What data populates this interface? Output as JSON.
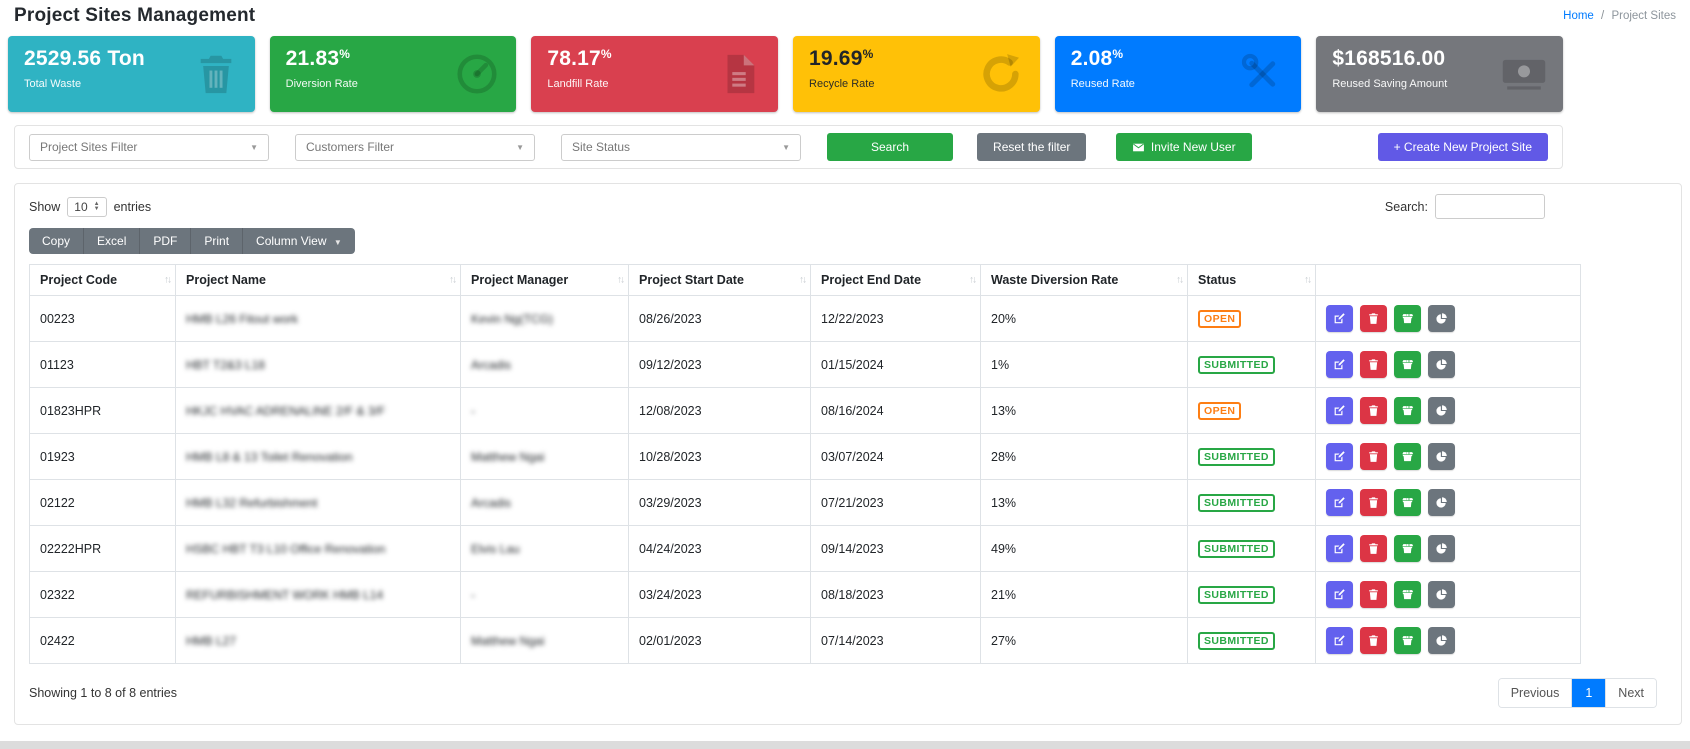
{
  "header": {
    "title": "Project Sites Management",
    "breadcrumb": {
      "home": "Home",
      "separator": "/",
      "current": "Project Sites"
    }
  },
  "stats": [
    {
      "value": "2529.56 Ton",
      "label": "Total Waste",
      "color": "#2fb3c3",
      "icon": "trash-icon"
    },
    {
      "value": "21.83",
      "unit": "%",
      "label": "Diversion Rate",
      "color": "#28a745",
      "icon": "gauge-icon"
    },
    {
      "value": "78.17",
      "unit": "%",
      "label": "Landfill Rate",
      "color": "#d9404f",
      "icon": "file-icon"
    },
    {
      "value": "19.69",
      "unit": "%",
      "label": "Recycle Rate",
      "color": "#ffc107",
      "icon": "sync-icon"
    },
    {
      "value": "2.08",
      "unit": "%",
      "label": "Reused Rate",
      "color": "#007bff",
      "icon": "tools-icon"
    },
    {
      "value": "$168516.00",
      "label": "Reused Saving Amount",
      "color": "#75777c",
      "icon": "money-icon"
    }
  ],
  "filters": {
    "project_sites_placeholder": "Project Sites Filter",
    "customers_placeholder": "Customers Filter",
    "site_status_placeholder": "Site Status",
    "search_button": "Search",
    "reset_button": "Reset the filter",
    "invite_button": "Invite New User",
    "create_button": "+ Create New Project Site"
  },
  "table_controls": {
    "show_label": "Show",
    "page_length": "10",
    "entries_label": "entries",
    "export_buttons": [
      "Copy",
      "Excel",
      "PDF",
      "Print"
    ],
    "column_view": "Column View",
    "search_label": "Search:",
    "search_value": ""
  },
  "table": {
    "columns": [
      "Project Code",
      "Project Name",
      "Project Manager",
      "Project Start Date",
      "Project End Date",
      "Waste Diversion Rate",
      "Status",
      ""
    ],
    "rows": [
      {
        "code": "00223",
        "name": "HMB L26 Fitout work",
        "manager": "Kevin Ng(TCG)",
        "start": "08/26/2023",
        "end": "12/22/2023",
        "rate": "20%",
        "status": "OPEN"
      },
      {
        "code": "01123",
        "name": "HBT T2&3 L18",
        "manager": "Arcadis",
        "start": "09/12/2023",
        "end": "01/15/2024",
        "rate": "1%",
        "status": "SUBMITTED"
      },
      {
        "code": "01823HPR",
        "name": "HKJC HVAC ADRENALINE 2/F & 3/F",
        "manager": "-",
        "start": "12/08/2023",
        "end": "08/16/2024",
        "rate": "13%",
        "status": "OPEN"
      },
      {
        "code": "01923",
        "name": "HMB L8 & 13 Toilet Renovation",
        "manager": "Matthew Ngai",
        "start": "10/28/2023",
        "end": "03/07/2024",
        "rate": "28%",
        "status": "SUBMITTED"
      },
      {
        "code": "02122",
        "name": "HMB L32 Refurbishment",
        "manager": "Arcadis",
        "start": "03/29/2023",
        "end": "07/21/2023",
        "rate": "13%",
        "status": "SUBMITTED"
      },
      {
        "code": "02222HPR",
        "name": "HSBC HBT T3 L10 Office Renovation",
        "manager": "Elvis Lau",
        "start": "04/24/2023",
        "end": "09/14/2023",
        "rate": "49%",
        "status": "SUBMITTED"
      },
      {
        "code": "02322",
        "name": "REFURBISHMENT WORK HMB L14",
        "manager": "-",
        "start": "03/24/2023",
        "end": "08/18/2023",
        "rate": "21%",
        "status": "SUBMITTED"
      },
      {
        "code": "02422",
        "name": "HMB L27",
        "manager": "Matthew Ngai",
        "start": "02/01/2023",
        "end": "07/14/2023",
        "rate": "27%",
        "status": "SUBMITTED"
      }
    ],
    "status_colors": {
      "OPEN": "#fd7e14",
      "SUBMITTED": "#28a745"
    },
    "action_buttons": [
      {
        "name": "edit",
        "icon": "edit-icon",
        "color": "#6361ee"
      },
      {
        "name": "delete",
        "icon": "trash-icon",
        "color": "#dc3545"
      },
      {
        "name": "dumpster",
        "icon": "dumpster-icon",
        "color": "#28a745"
      },
      {
        "name": "chart",
        "icon": "pie-chart-icon",
        "color": "#6c757d"
      }
    ]
  },
  "footer": {
    "info": "Showing 1 to 8 of 8 entries",
    "previous": "Previous",
    "page": "1",
    "next": "Next"
  }
}
